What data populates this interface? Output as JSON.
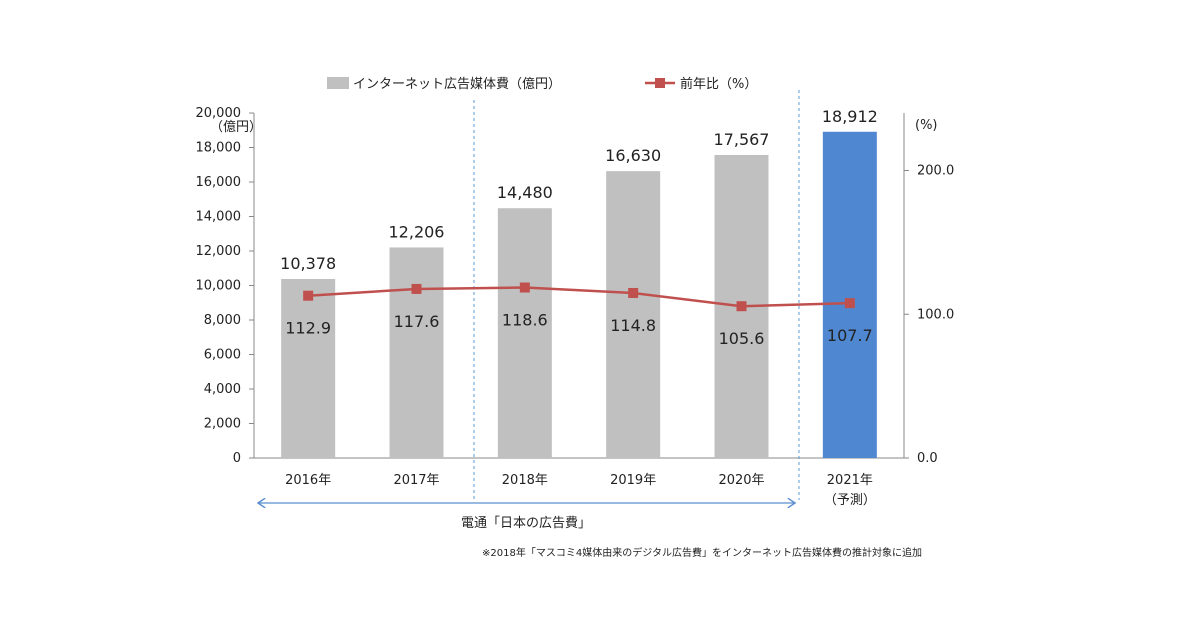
{
  "chart_data": {
    "type": "bar",
    "categories": [
      "2016年",
      "2017年",
      "2018年",
      "2019年",
      "2020年",
      "2021年"
    ],
    "category_sublabels": [
      "",
      "",
      "",
      "",
      "",
      "（予測）"
    ],
    "series": [
      {
        "name": "インターネット広告媒体費（億円）",
        "type": "bar",
        "axis": "left",
        "values": [
          10378,
          12206,
          14480,
          16630,
          17567,
          18912
        ],
        "labels": [
          "10,378",
          "12,206",
          "14,480",
          "16,630",
          "17,567",
          "18,912"
        ],
        "colors": [
          "#c0c0c0",
          "#c0c0c0",
          "#c0c0c0",
          "#c0c0c0",
          "#c0c0c0",
          "#4f88d0"
        ]
      },
      {
        "name": "前年比（%）",
        "type": "line",
        "axis": "right",
        "values": [
          112.9,
          117.6,
          118.6,
          114.8,
          105.6,
          107.7
        ],
        "labels": [
          "112.9",
          "117.6",
          "118.6",
          "114.8",
          "105.6",
          "107.7"
        ],
        "color": "#c0504d"
      }
    ],
    "y_left": {
      "unit_label": "（億円）",
      "lim": [
        0,
        20000
      ],
      "ticks": [
        "0",
        "2,000",
        "4,000",
        "6,000",
        "8,000",
        "10,000",
        "12,000",
        "14,000",
        "16,000",
        "18,000",
        "20,000"
      ]
    },
    "y_right": {
      "unit_label": "(%)",
      "lim": [
        0,
        240
      ],
      "ticks": [
        "0.0",
        "100.0",
        "200.0"
      ]
    },
    "grid": false,
    "legend_position": "top",
    "bracket_label": "電通「日本の広告費」",
    "footnote": "※2018年「マスコミ4媒体由来のデジタル広告費」をインターネット広告媒体費の推計対象に追加"
  }
}
